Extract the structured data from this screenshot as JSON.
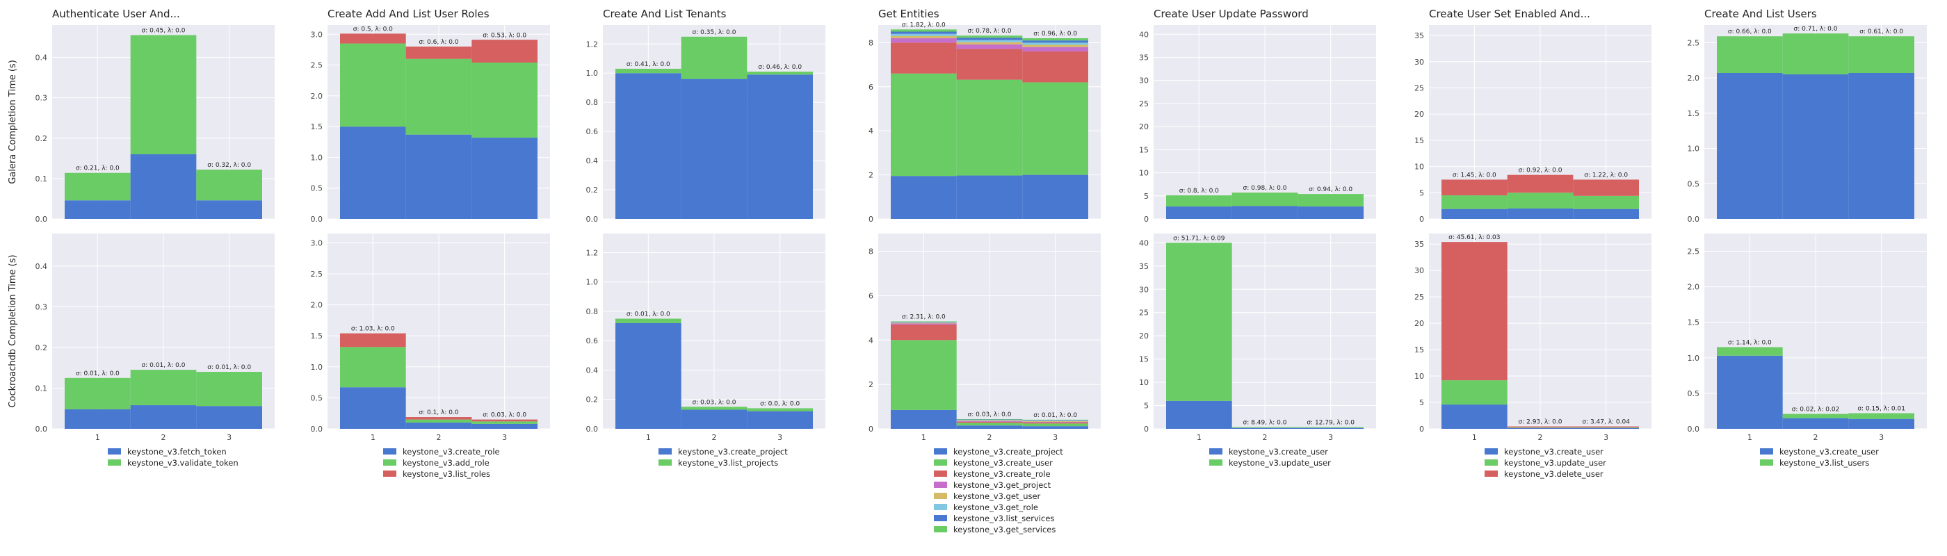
{
  "row_labels": [
    "Galera Completion Time (s)",
    "Cockroachdb Completion Time (s)"
  ],
  "chart_data": [
    {
      "type": "bar",
      "stacked": true,
      "title": "Authenticate User And...",
      "categories": [
        "1",
        "2",
        "3"
      ],
      "ylim": [
        0,
        0.48
      ],
      "yticks": [
        "0.0",
        "0.1",
        "0.2",
        "0.3",
        "0.4"
      ],
      "legend_position": "bottom",
      "series_names": [
        "keystone_v3.fetch_token",
        "keystone_v3.validate_token"
      ],
      "series_colors": [
        "#4878d0",
        "#6acc64"
      ],
      "rows": [
        {
          "series_values": [
            [
              0.046,
              0.16,
              0.046
            ],
            [
              0.068,
              0.295,
              0.076
            ]
          ],
          "annotations": [
            "σ: 0.21, λ: 0.0",
            "σ: 0.45, λ: 0.0",
            "σ: 0.32, λ: 0.0"
          ]
        },
        {
          "series_values": [
            [
              0.048,
              0.058,
              0.056
            ],
            [
              0.077,
              0.087,
              0.084
            ]
          ],
          "annotations": [
            "σ: 0.01, λ: 0.0",
            "σ: 0.01, λ: 0.0",
            "σ: 0.01, λ: 0.0"
          ]
        }
      ]
    },
    {
      "type": "bar",
      "stacked": true,
      "title": "Create Add And List User Roles",
      "categories": [
        "1",
        "2",
        "3"
      ],
      "ylim": [
        0,
        3.15
      ],
      "yticks": [
        "0.0",
        "0.5",
        "1.0",
        "1.5",
        "2.0",
        "2.5",
        "3.0"
      ],
      "legend_position": "bottom",
      "series_names": [
        "keystone_v3.create_role",
        "keystone_v3.add_role",
        "keystone_v3.list_roles"
      ],
      "series_colors": [
        "#4878d0",
        "#6acc64",
        "#d65f5f"
      ],
      "rows": [
        {
          "series_values": [
            [
              1.5,
              1.37,
              1.32
            ],
            [
              1.35,
              1.23,
              1.22
            ],
            [
              0.16,
              0.2,
              0.37
            ]
          ],
          "annotations": [
            "σ: 0.5, λ: 0.0",
            "σ: 0.6, λ: 0.0",
            "σ: 0.53, λ: 0.0"
          ]
        },
        {
          "series_values": [
            [
              0.67,
              0.1,
              0.08
            ],
            [
              0.65,
              0.05,
              0.04
            ],
            [
              0.22,
              0.04,
              0.03
            ]
          ],
          "annotations": [
            "σ: 1.03, λ: 0.0",
            "σ: 0.1, λ: 0.0",
            "σ: 0.03, λ: 0.0"
          ]
        }
      ]
    },
    {
      "type": "bar",
      "stacked": true,
      "title": "Create And List Tenants",
      "categories": [
        "1",
        "2",
        "3"
      ],
      "ylim": [
        0,
        1.33
      ],
      "yticks": [
        "0.0",
        "0.2",
        "0.4",
        "0.6",
        "0.8",
        "1.0",
        "1.2"
      ],
      "legend_position": "bottom",
      "series_names": [
        "keystone_v3.create_project",
        "keystone_v3.list_projects"
      ],
      "series_colors": [
        "#4878d0",
        "#6acc64"
      ],
      "rows": [
        {
          "series_values": [
            [
              1.0,
              0.96,
              0.99
            ],
            [
              0.03,
              0.29,
              0.02
            ]
          ],
          "annotations": [
            "σ: 0.41, λ: 0.0",
            "σ: 0.35, λ: 0.0",
            "σ: 0.46, λ: 0.0"
          ]
        },
        {
          "series_values": [
            [
              0.72,
              0.13,
              0.12
            ],
            [
              0.03,
              0.02,
              0.02
            ]
          ],
          "annotations": [
            "σ: 0.01, λ: 0.0",
            "σ: 0.03, λ: 0.0",
            "σ: 0.0, λ: 0.0"
          ]
        }
      ]
    },
    {
      "type": "bar",
      "stacked": true,
      "title": "Get Entities",
      "categories": [
        "1",
        "2",
        "3"
      ],
      "ylim": [
        0,
        8.8
      ],
      "yticks": [
        "0",
        "2",
        "4",
        "6",
        "8"
      ],
      "legend_position": "bottom",
      "series_names": [
        "keystone_v3.create_project",
        "keystone_v3.create_user",
        "keystone_v3.create_role",
        "keystone_v3.get_project",
        "keystone_v3.get_user",
        "keystone_v3.get_role",
        "keystone_v3.list_services",
        "keystone_v3.get_services"
      ],
      "series_colors": [
        "#4878d0",
        "#6acc64",
        "#d65f5f",
        "#c66fca",
        "#d5bb67",
        "#82c6e2",
        "#4878d0",
        "#6acc64"
      ],
      "rows": [
        {
          "series_values": [
            [
              1.95,
              1.97,
              2.0
            ],
            [
              4.65,
              4.35,
              4.2
            ],
            [
              1.4,
              1.4,
              1.4
            ],
            [
              0.2,
              0.2,
              0.2
            ],
            [
              0.1,
              0.1,
              0.1
            ],
            [
              0.1,
              0.1,
              0.1
            ],
            [
              0.1,
              0.1,
              0.1
            ],
            [
              0.1,
              0.1,
              0.1
            ]
          ],
          "annotations": [
            "σ: 1.82, λ: 0.0",
            "σ: 0.78, λ: 0.0",
            "σ: 0.96, λ: 0.0"
          ]
        },
        {
          "series_values": [
            [
              0.85,
              0.15,
              0.12
            ],
            [
              3.15,
              0.12,
              0.12
            ],
            [
              0.7,
              0.05,
              0.05
            ],
            [
              0.05,
              0.03,
              0.03
            ],
            [
              0.03,
              0.03,
              0.03
            ],
            [
              0.02,
              0.02,
              0.02
            ],
            [
              0.02,
              0.02,
              0.02
            ],
            [
              0.02,
              0.02,
              0.02
            ]
          ],
          "annotations": [
            "σ: 2.31, λ: 0.0",
            "σ: 0.03, λ: 0.0",
            "σ: 0.01, λ: 0.0"
          ]
        }
      ]
    },
    {
      "type": "bar",
      "stacked": true,
      "title": "Create User Update Password",
      "categories": [
        "1",
        "2",
        "3"
      ],
      "ylim": [
        0,
        42
      ],
      "yticks": [
        "0",
        "5",
        "10",
        "15",
        "20",
        "25",
        "30",
        "35",
        "40"
      ],
      "legend_position": "bottom",
      "series_names": [
        "keystone_v3.create_user",
        "keystone_v3.update_user"
      ],
      "series_colors": [
        "#4878d0",
        "#6acc64"
      ],
      "rows": [
        {
          "series_values": [
            [
              2.7,
              2.8,
              2.7
            ],
            [
              2.4,
              2.9,
              2.7
            ]
          ],
          "annotations": [
            "σ: 0.8, λ: 0.0",
            "σ: 0.98, λ: 0.0",
            "σ: 0.94, λ: 0.0"
          ]
        },
        {
          "series_values": [
            [
              6.0,
              0.2,
              0.2
            ],
            [
              34.0,
              0.15,
              0.15
            ]
          ],
          "annotations": [
            "σ: 51.71, λ: 0.09",
            "σ: 8.49, λ: 0.0",
            "σ: 12.79, λ: 0.0"
          ]
        }
      ]
    },
    {
      "type": "bar",
      "stacked": true,
      "title": "Create User Set Enabled And...",
      "categories": [
        "1",
        "2",
        "3"
      ],
      "ylim": [
        0,
        37
      ],
      "yticks": [
        "0",
        "5",
        "10",
        "15",
        "20",
        "25",
        "30",
        "35"
      ],
      "legend_position": "bottom",
      "series_names": [
        "keystone_v3.create_user",
        "keystone_v3.update_user",
        "keystone_v3.delete_user"
      ],
      "series_colors": [
        "#4878d0",
        "#6acc64",
        "#d65f5f"
      ],
      "rows": [
        {
          "series_values": [
            [
              1.9,
              2.0,
              1.9
            ],
            [
              2.6,
              3.0,
              2.5
            ],
            [
              3.0,
              3.4,
              3.1
            ]
          ],
          "annotations": [
            "σ: 1.45, λ: 0.0",
            "σ: 0.92, λ: 0.0",
            "σ: 1.22, λ: 0.0"
          ]
        },
        {
          "series_values": [
            [
              4.6,
              0.15,
              0.15
            ],
            [
              4.6,
              0.1,
              0.1
            ],
            [
              26.2,
              0.2,
              0.2
            ]
          ],
          "annotations": [
            "σ: 45.61, λ: 0.03",
            "σ: 2.93, λ: 0.0",
            "σ: 3.47, λ: 0.04"
          ]
        }
      ]
    },
    {
      "type": "bar",
      "stacked": true,
      "title": "Create And List Users",
      "categories": [
        "1",
        "2",
        "3"
      ],
      "ylim": [
        0,
        2.75
      ],
      "yticks": [
        "0.0",
        "0.5",
        "1.0",
        "1.5",
        "2.0",
        "2.5"
      ],
      "legend_position": "bottom",
      "series_names": [
        "keystone_v3.create_user",
        "keystone_v3.list_users"
      ],
      "series_colors": [
        "#4878d0",
        "#6acc64"
      ],
      "rows": [
        {
          "series_values": [
            [
              2.07,
              2.05,
              2.07
            ],
            [
              0.52,
              0.58,
              0.52
            ]
          ],
          "annotations": [
            "σ: 0.66, λ: 0.0",
            "σ: 0.71, λ: 0.0",
            "σ: 0.61, λ: 0.0"
          ]
        },
        {
          "series_values": [
            [
              1.03,
              0.15,
              0.14
            ],
            [
              0.12,
              0.06,
              0.08
            ]
          ],
          "annotations": [
            "σ: 1.14, λ: 0.0",
            "σ: 0.02, λ: 0.02",
            "σ: 0.15, λ: 0.01"
          ]
        }
      ]
    }
  ]
}
